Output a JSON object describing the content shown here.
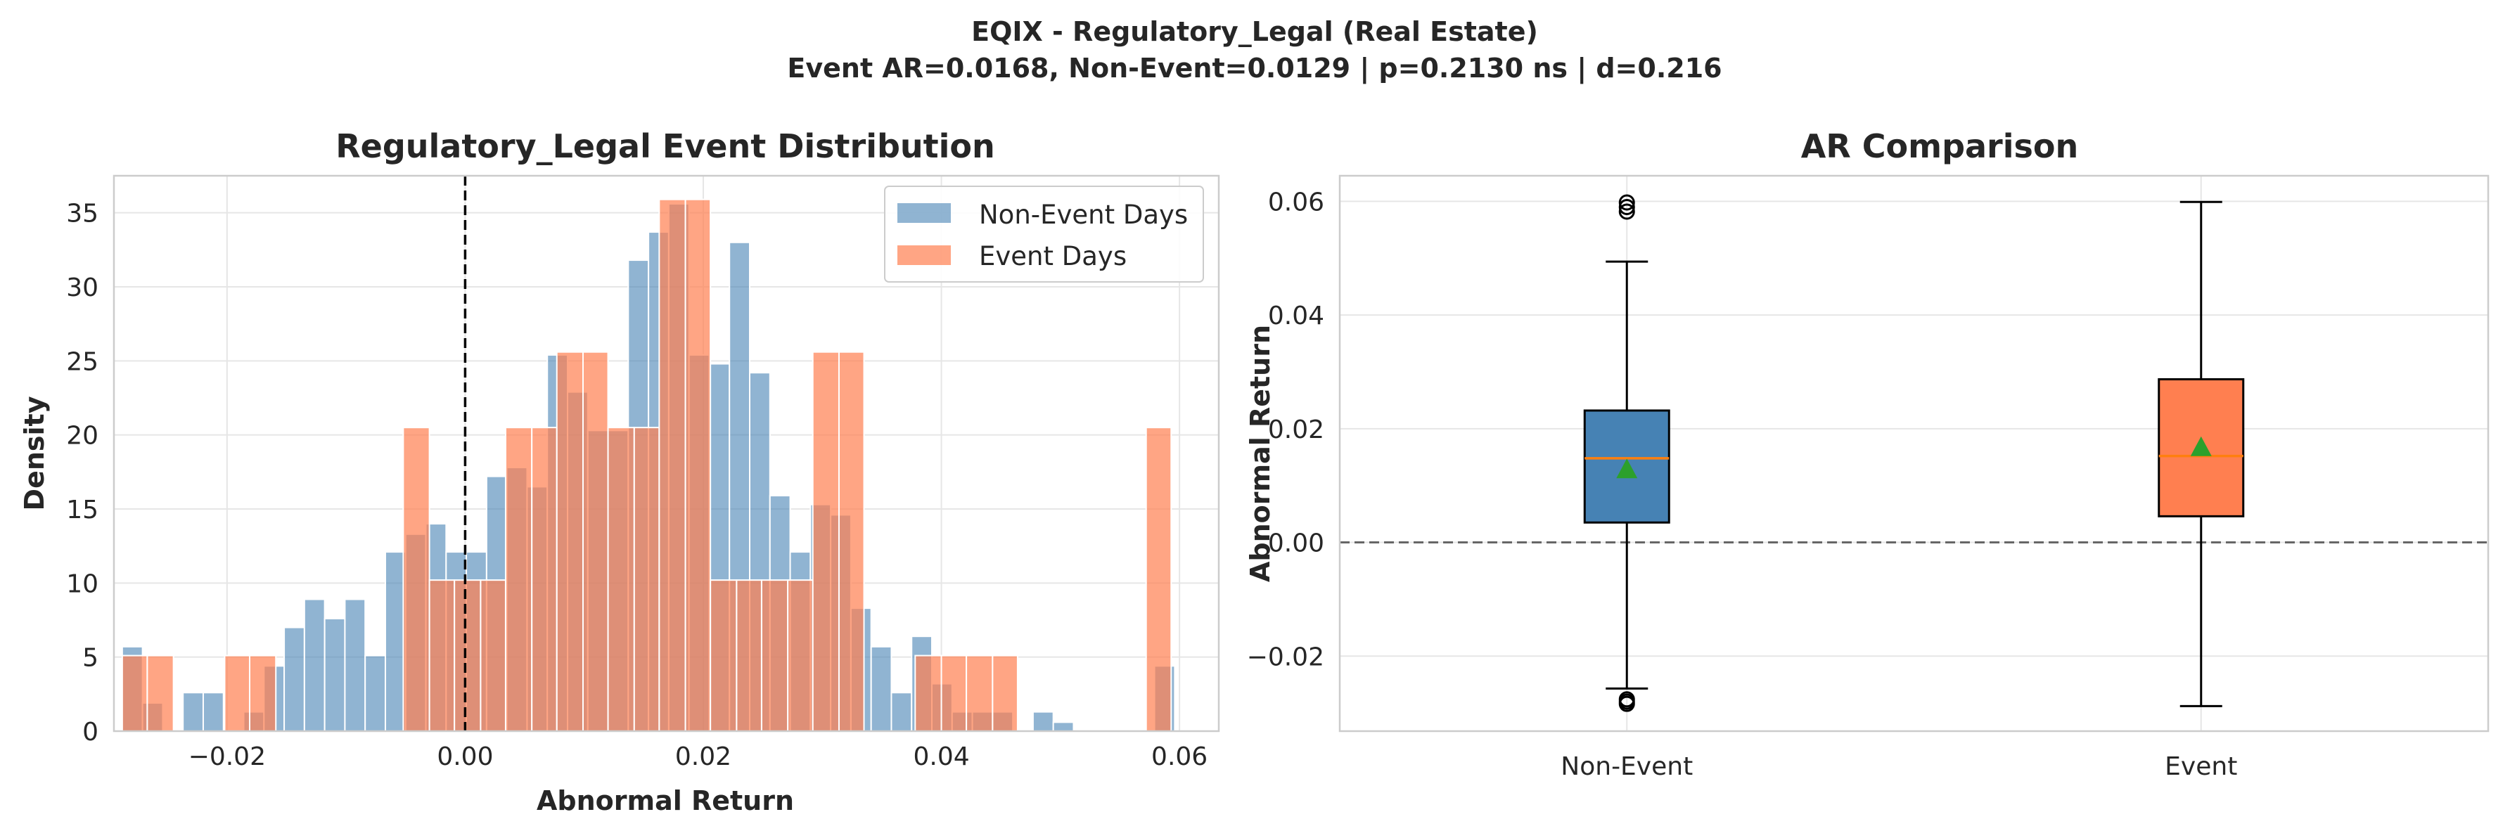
{
  "suptitle": {
    "line1": "EQIX - Regulatory_Legal (Real Estate)",
    "line2": "Event AR=0.0168, Non-Event=0.0129 | p=0.2130 ns | d=0.216"
  },
  "colors": {
    "non_event": "#4682b4",
    "event": "#ff7f50",
    "median": "#ff7f0e",
    "mean": "#2ca02c"
  },
  "chart_data": [
    {
      "type": "histogram",
      "title": "Regulatory_Legal Event Distribution",
      "xlabel": "Abnormal Return",
      "ylabel": "Density",
      "xlim": [
        -0.0295,
        0.0633
      ],
      "ylim": [
        0,
        37.5
      ],
      "xticks": [
        -0.02,
        0.0,
        0.02,
        0.04,
        0.06
      ],
      "xtick_labels": [
        "−0.02",
        "0.00",
        "0.02",
        "0.04",
        "0.06"
      ],
      "yticks": [
        0,
        5,
        10,
        15,
        20,
        25,
        30,
        35
      ],
      "ytick_labels": [
        "0",
        "5",
        "10",
        "15",
        "20",
        "25",
        "30",
        "35"
      ],
      "grid": true,
      "legend": {
        "position": "top-right",
        "entries": [
          "Non-Event Days",
          "Event Days"
        ]
      },
      "vline": {
        "x": 0.0,
        "style": "dashed",
        "color": "#000000"
      },
      "series": [
        {
          "name": "Non-Event Days",
          "alpha": 0.6,
          "bins": [
            {
              "x0": -0.0288,
              "x1": -0.0271,
              "y": 5.7
            },
            {
              "x0": -0.0271,
              "x1": -0.0254,
              "y": 1.9
            },
            {
              "x0": -0.0254,
              "x1": -0.0237,
              "y": 0
            },
            {
              "x0": -0.0237,
              "x1": -0.022,
              "y": 2.6
            },
            {
              "x0": -0.022,
              "x1": -0.0203,
              "y": 2.6
            },
            {
              "x0": -0.0203,
              "x1": -0.0186,
              "y": 0
            },
            {
              "x0": -0.0186,
              "x1": -0.0169,
              "y": 1.3
            },
            {
              "x0": -0.0169,
              "x1": -0.0152,
              "y": 4.4
            },
            {
              "x0": -0.0152,
              "x1": -0.0135,
              "y": 7.0
            },
            {
              "x0": -0.0135,
              "x1": -0.0118,
              "y": 8.9
            },
            {
              "x0": -0.0118,
              "x1": -0.0101,
              "y": 7.6
            },
            {
              "x0": -0.0101,
              "x1": -0.0084,
              "y": 8.9
            },
            {
              "x0": -0.0084,
              "x1": -0.0067,
              "y": 5.1
            },
            {
              "x0": -0.0067,
              "x1": -0.005,
              "y": 12.1
            },
            {
              "x0": -0.005,
              "x1": -0.0033,
              "y": 13.3
            },
            {
              "x0": -0.0033,
              "x1": -0.0016,
              "y": 14.0
            },
            {
              "x0": -0.0016,
              "x1": 0.0001,
              "y": 12.1
            },
            {
              "x0": 0.0001,
              "x1": 0.0018,
              "y": 12.1
            },
            {
              "x0": 0.0018,
              "x1": 0.0035,
              "y": 17.2
            },
            {
              "x0": 0.0035,
              "x1": 0.0052,
              "y": 17.8
            },
            {
              "x0": 0.0052,
              "x1": 0.0069,
              "y": 16.5
            },
            {
              "x0": 0.0069,
              "x1": 0.0086,
              "y": 25.4
            },
            {
              "x0": 0.0086,
              "x1": 0.0103,
              "y": 22.9
            },
            {
              "x0": 0.0103,
              "x1": 0.012,
              "y": 20.3
            },
            {
              "x0": 0.012,
              "x1": 0.0137,
              "y": 20.3
            },
            {
              "x0": 0.0137,
              "x1": 0.0154,
              "y": 31.8
            },
            {
              "x0": 0.0154,
              "x1": 0.0171,
              "y": 33.7
            },
            {
              "x0": 0.0171,
              "x1": 0.0188,
              "y": 35.6
            },
            {
              "x0": 0.0188,
              "x1": 0.0205,
              "y": 25.4
            },
            {
              "x0": 0.0205,
              "x1": 0.0222,
              "y": 24.8
            },
            {
              "x0": 0.0222,
              "x1": 0.0239,
              "y": 33.0
            },
            {
              "x0": 0.0239,
              "x1": 0.0256,
              "y": 24.2
            },
            {
              "x0": 0.0256,
              "x1": 0.0273,
              "y": 15.9
            },
            {
              "x0": 0.0273,
              "x1": 0.029,
              "y": 12.1
            },
            {
              "x0": 0.029,
              "x1": 0.0307,
              "y": 15.3
            },
            {
              "x0": 0.0307,
              "x1": 0.0324,
              "y": 14.6
            },
            {
              "x0": 0.0324,
              "x1": 0.0341,
              "y": 8.3
            },
            {
              "x0": 0.0341,
              "x1": 0.0358,
              "y": 5.7
            },
            {
              "x0": 0.0358,
              "x1": 0.0375,
              "y": 2.6
            },
            {
              "x0": 0.0375,
              "x1": 0.0392,
              "y": 6.4
            },
            {
              "x0": 0.0392,
              "x1": 0.0409,
              "y": 3.2
            },
            {
              "x0": 0.0409,
              "x1": 0.0426,
              "y": 1.3
            },
            {
              "x0": 0.0426,
              "x1": 0.0443,
              "y": 1.3
            },
            {
              "x0": 0.0443,
              "x1": 0.046,
              "y": 1.3
            },
            {
              "x0": 0.046,
              "x1": 0.0477,
              "y": 0
            },
            {
              "x0": 0.0477,
              "x1": 0.0494,
              "y": 1.3
            },
            {
              "x0": 0.0494,
              "x1": 0.0511,
              "y": 0.6
            },
            {
              "x0": 0.0511,
              "x1": 0.0528,
              "y": 0
            },
            {
              "x0": 0.0528,
              "x1": 0.0545,
              "y": 0
            },
            {
              "x0": 0.0545,
              "x1": 0.0562,
              "y": 0
            },
            {
              "x0": 0.0562,
              "x1": 0.0579,
              "y": 0
            },
            {
              "x0": 0.0579,
              "x1": 0.0596,
              "y": 4.4
            }
          ]
        },
        {
          "name": "Event Days",
          "alpha": 0.7,
          "bins": [
            {
              "x0": -0.0288,
              "x1": -0.0267,
              "y": 5.1
            },
            {
              "x0": -0.0267,
              "x1": -0.0245,
              "y": 5.1
            },
            {
              "x0": -0.0245,
              "x1": -0.0224,
              "y": 0
            },
            {
              "x0": -0.0224,
              "x1": -0.0202,
              "y": 0
            },
            {
              "x0": -0.0202,
              "x1": -0.0181,
              "y": 5.1
            },
            {
              "x0": -0.0181,
              "x1": -0.0159,
              "y": 5.1
            },
            {
              "x0": -0.0159,
              "x1": -0.0138,
              "y": 0
            },
            {
              "x0": -0.0138,
              "x1": -0.0116,
              "y": 0
            },
            {
              "x0": -0.0116,
              "x1": -0.0095,
              "y": 0
            },
            {
              "x0": -0.0095,
              "x1": -0.0073,
              "y": 0
            },
            {
              "x0": -0.0073,
              "x1": -0.0052,
              "y": 0
            },
            {
              "x0": -0.0052,
              "x1": -0.003,
              "y": 20.5
            },
            {
              "x0": -0.003,
              "x1": -0.0009,
              "y": 10.2
            },
            {
              "x0": -0.0009,
              "x1": 0.0013,
              "y": 10.2
            },
            {
              "x0": 0.0013,
              "x1": 0.0034,
              "y": 10.2
            },
            {
              "x0": 0.0034,
              "x1": 0.0056,
              "y": 20.5
            },
            {
              "x0": 0.0056,
              "x1": 0.0077,
              "y": 20.5
            },
            {
              "x0": 0.0077,
              "x1": 0.0099,
              "y": 25.6
            },
            {
              "x0": 0.0099,
              "x1": 0.012,
              "y": 25.6
            },
            {
              "x0": 0.012,
              "x1": 0.0142,
              "y": 20.5
            },
            {
              "x0": 0.0142,
              "x1": 0.0163,
              "y": 20.5
            },
            {
              "x0": 0.0163,
              "x1": 0.0185,
              "y": 35.9
            },
            {
              "x0": 0.0185,
              "x1": 0.0206,
              "y": 35.9
            },
            {
              "x0": 0.0206,
              "x1": 0.0228,
              "y": 10.2
            },
            {
              "x0": 0.0228,
              "x1": 0.0249,
              "y": 10.2
            },
            {
              "x0": 0.0249,
              "x1": 0.0271,
              "y": 10.2
            },
            {
              "x0": 0.0271,
              "x1": 0.0292,
              "y": 10.2
            },
            {
              "x0": 0.0292,
              "x1": 0.0314,
              "y": 25.6
            },
            {
              "x0": 0.0314,
              "x1": 0.0335,
              "y": 25.6
            },
            {
              "x0": 0.0335,
              "x1": 0.0357,
              "y": 0
            },
            {
              "x0": 0.0357,
              "x1": 0.0378,
              "y": 0
            },
            {
              "x0": 0.0378,
              "x1": 0.04,
              "y": 5.1
            },
            {
              "x0": 0.04,
              "x1": 0.0421,
              "y": 5.1
            },
            {
              "x0": 0.0421,
              "x1": 0.0443,
              "y": 5.1
            },
            {
              "x0": 0.0443,
              "x1": 0.0464,
              "y": 5.1
            },
            {
              "x0": 0.0464,
              "x1": 0.0486,
              "y": 0
            },
            {
              "x0": 0.0486,
              "x1": 0.0507,
              "y": 0
            },
            {
              "x0": 0.0507,
              "x1": 0.0529,
              "y": 0
            },
            {
              "x0": 0.0529,
              "x1": 0.055,
              "y": 0
            },
            {
              "x0": 0.055,
              "x1": 0.0572,
              "y": 0
            },
            {
              "x0": 0.0572,
              "x1": 0.0593,
              "y": 20.5
            }
          ]
        }
      ]
    },
    {
      "type": "box",
      "title": "AR Comparison",
      "xlabel": "",
      "ylabel": "Abnormal Return",
      "ylim": [
        -0.0332,
        0.0645
      ],
      "yticks": [
        -0.02,
        0.0,
        0.02,
        0.04,
        0.06
      ],
      "ytick_labels": [
        "−0.02",
        "0.00",
        "0.02",
        "0.04",
        "0.06"
      ],
      "categories": [
        "Non-Event",
        "Event"
      ],
      "grid": true,
      "hline": {
        "y": 0.0,
        "style": "dashed",
        "color": "#666666"
      },
      "boxes": [
        {
          "name": "Non-Event",
          "whisker_low": -0.0257,
          "q1": 0.0035,
          "median": 0.0148,
          "q3": 0.0232,
          "whisker_high": 0.0494,
          "mean": 0.0129,
          "outliers": [
            -0.0276,
            -0.028,
            -0.0284,
            0.0582,
            0.059,
            0.0598
          ]
        },
        {
          "name": "Event",
          "whisker_low": -0.0288,
          "q1": 0.0046,
          "median": 0.0152,
          "q3": 0.0287,
          "whisker_high": 0.0599,
          "mean": 0.0168,
          "outliers": []
        }
      ]
    }
  ]
}
